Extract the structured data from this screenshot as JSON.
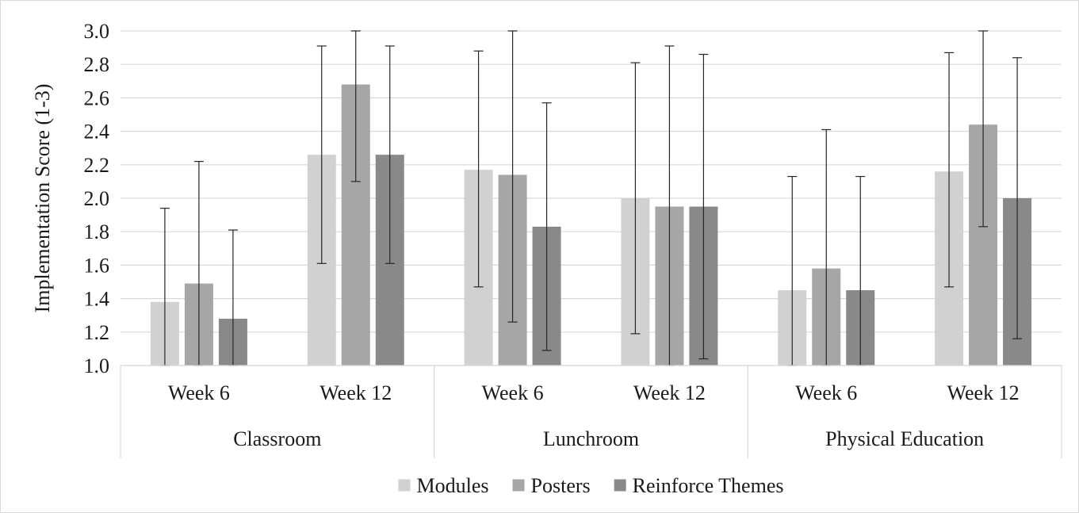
{
  "chart_data": {
    "type": "bar",
    "title": "",
    "ylabel": "Implementation  Score  (1-3)",
    "xlabel": "",
    "ylim": [
      1.0,
      3.0
    ],
    "ytick_step": 0.2,
    "grid": true,
    "legend_position": "bottom",
    "groups": [
      {
        "name": "Classroom",
        "categories": [
          "Week 6",
          "Week 12"
        ]
      },
      {
        "name": "Lunchroom",
        "categories": [
          "Week 6",
          "Week 12"
        ]
      },
      {
        "name": "Physical Education",
        "categories": [
          "Week 6",
          "Week 12"
        ]
      }
    ],
    "categories": [
      "Classroom Week 6",
      "Classroom Week 12",
      "Lunchroom Week 6",
      "Lunchroom Week 12",
      "Physical Education Week 6",
      "Physical Education Week 12"
    ],
    "series": [
      {
        "name": "Modules",
        "color": "#d1d1d1",
        "values": [
          1.38,
          2.26,
          2.17,
          2.0,
          1.45,
          2.16
        ],
        "error_low": [
          1.0,
          1.61,
          1.47,
          1.19,
          1.0,
          1.47
        ],
        "error_high": [
          1.94,
          2.91,
          2.88,
          2.81,
          2.13,
          2.87
        ]
      },
      {
        "name": "Posters",
        "color": "#a6a6a6",
        "values": [
          1.49,
          2.68,
          2.14,
          1.95,
          1.58,
          2.44
        ],
        "error_low": [
          1.0,
          2.1,
          1.26,
          1.0,
          1.0,
          1.83
        ],
        "error_high": [
          2.22,
          3.0,
          3.0,
          2.91,
          2.41,
          3.0
        ]
      },
      {
        "name": "Reinforce Themes",
        "color": "#898989",
        "values": [
          1.28,
          2.26,
          1.83,
          1.95,
          1.45,
          2.0
        ],
        "error_low": [
          1.0,
          1.61,
          1.09,
          1.04,
          1.0,
          1.16
        ],
        "error_high": [
          1.81,
          2.91,
          2.57,
          2.86,
          2.13,
          2.84
        ]
      }
    ]
  }
}
